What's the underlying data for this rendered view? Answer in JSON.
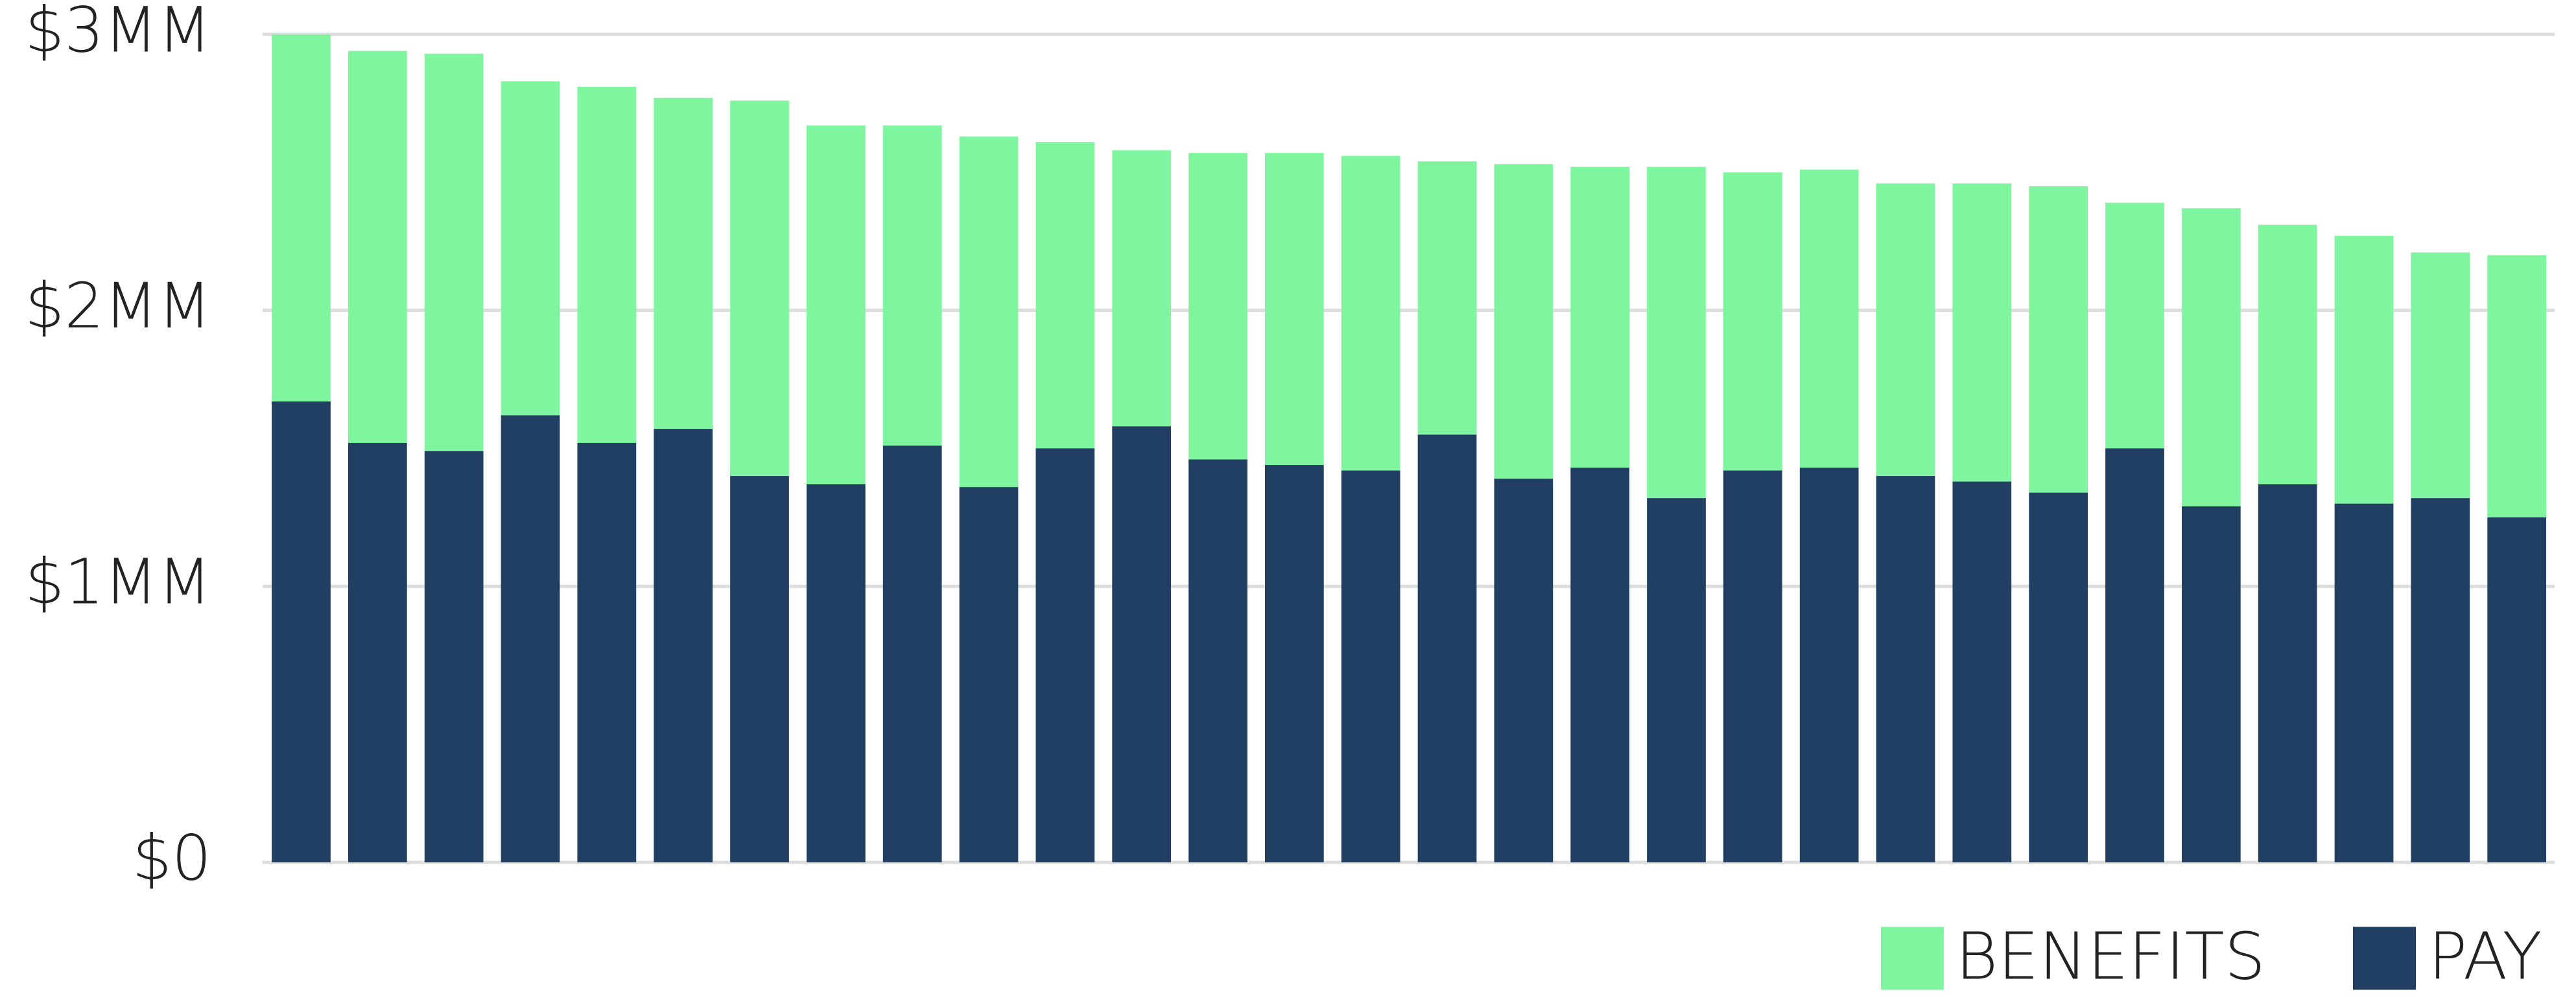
{
  "chart_data": {
    "type": "stacked-bar",
    "categories": [
      null,
      null,
      null,
      null,
      null,
      null,
      null,
      null,
      null,
      null,
      null,
      null,
      null,
      null,
      null,
      null,
      null,
      null,
      null,
      null,
      null,
      null,
      null,
      null,
      null,
      null,
      null,
      null,
      null,
      null
    ],
    "series": [
      {
        "name": "PAY",
        "color": "#213f63",
        "values": [
          1.67,
          1.52,
          1.49,
          1.62,
          1.52,
          1.57,
          1.4,
          1.37,
          1.51,
          1.36,
          1.5,
          1.58,
          1.46,
          1.44,
          1.42,
          1.55,
          1.39,
          1.43,
          1.32,
          1.42,
          1.43,
          1.4,
          1.38,
          1.34,
          1.5,
          1.29,
          1.37,
          1.3,
          1.32,
          1.25
        ]
      },
      {
        "name": "BENEFITS",
        "color": "#80f5a0",
        "values": [
          1.33,
          1.42,
          1.44,
          1.21,
          1.29,
          1.2,
          1.36,
          1.3,
          1.16,
          1.27,
          1.11,
          1.0,
          1.11,
          1.13,
          1.14,
          0.99,
          1.14,
          1.09,
          1.2,
          1.08,
          1.08,
          1.06,
          1.08,
          1.11,
          0.89,
          1.08,
          0.94,
          0.97,
          0.89,
          0.95
        ]
      }
    ],
    "ylim": [
      0,
      3
    ],
    "yticks": [
      {
        "value": 0,
        "label": "$0"
      },
      {
        "value": 1,
        "label": "$1MM"
      },
      {
        "value": 2,
        "label": "$2MM"
      },
      {
        "value": 3,
        "label": "$3MM"
      }
    ],
    "grid": true,
    "legend": "bottom-right"
  }
}
